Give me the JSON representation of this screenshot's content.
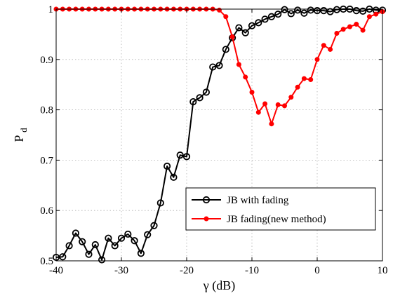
{
  "chart_data": {
    "type": "line",
    "xlabel": "γ (dB)",
    "ylabel_main": "P",
    "ylabel_sub": "d",
    "xlim": [
      -40,
      10
    ],
    "ylim": [
      0.5,
      1
    ],
    "x_ticks": [
      -40,
      -30,
      -20,
      -10,
      0,
      10
    ],
    "x_tick_labels": [
      "-40",
      "-30",
      "-20",
      "-10",
      "0",
      "10"
    ],
    "y_ticks": [
      0.5,
      0.6,
      0.7,
      0.8,
      0.9,
      1
    ],
    "y_tick_labels": [
      "0.5",
      "0.6",
      "0.7",
      "0.8",
      "0.9",
      "1"
    ],
    "grid": true,
    "legend_position": "lower-right",
    "series": [
      {
        "name": "JB with fading",
        "color": "#000000",
        "marker": "open-circle",
        "x": [
          -40,
          -39,
          -38,
          -37,
          -36,
          -35,
          -34,
          -33,
          -32,
          -31,
          -30,
          -29,
          -28,
          -27,
          -26,
          -25,
          -24,
          -23,
          -22,
          -21,
          -20,
          -19,
          -18,
          -17,
          -16,
          -15,
          -14,
          -13,
          -12,
          -11,
          -10,
          -9,
          -8,
          -7,
          -6,
          -5,
          -4,
          -3,
          -2,
          -1,
          0,
          1,
          2,
          3,
          4,
          5,
          6,
          7,
          8,
          9,
          10
        ],
        "y": [
          0.507,
          0.508,
          0.53,
          0.555,
          0.538,
          0.513,
          0.532,
          0.502,
          0.545,
          0.53,
          0.545,
          0.553,
          0.54,
          0.515,
          0.552,
          0.57,
          0.615,
          0.688,
          0.666,
          0.71,
          0.707,
          0.816,
          0.824,
          0.835,
          0.885,
          0.888,
          0.92,
          0.943,
          0.963,
          0.953,
          0.967,
          0.973,
          0.98,
          0.985,
          0.99,
          0.999,
          0.991,
          0.998,
          0.992,
          0.998,
          0.997,
          0.997,
          0.995,
          0.999,
          1.0,
          1.0,
          0.997,
          0.996,
          1.0,
          0.998,
          0.998
        ]
      },
      {
        "name": "JB fading(new method)",
        "color": "#ff0000",
        "marker": "filled-dot",
        "x": [
          -40,
          -39,
          -38,
          -37,
          -36,
          -35,
          -34,
          -33,
          -32,
          -31,
          -30,
          -29,
          -28,
          -27,
          -26,
          -25,
          -24,
          -23,
          -22,
          -21,
          -20,
          -19,
          -18,
          -17,
          -16,
          -15,
          -14,
          -13,
          -12,
          -11,
          -10,
          -9,
          -8,
          -7,
          -6,
          -5,
          -4,
          -3,
          -2,
          -1,
          0,
          1,
          2,
          3,
          4,
          5,
          6,
          7,
          8,
          9,
          10
        ],
        "y": [
          1,
          1,
          1,
          1,
          1,
          1,
          1,
          1,
          1,
          1,
          1,
          1,
          1,
          1,
          1,
          1,
          1,
          1,
          1,
          1,
          1,
          1,
          1,
          1,
          1,
          0.998,
          0.985,
          0.945,
          0.89,
          0.865,
          0.835,
          0.795,
          0.812,
          0.772,
          0.81,
          0.808,
          0.825,
          0.845,
          0.862,
          0.86,
          0.9,
          0.928,
          0.92,
          0.952,
          0.96,
          0.965,
          0.97,
          0.958,
          0.985,
          0.99,
          0.995
        ]
      }
    ]
  }
}
